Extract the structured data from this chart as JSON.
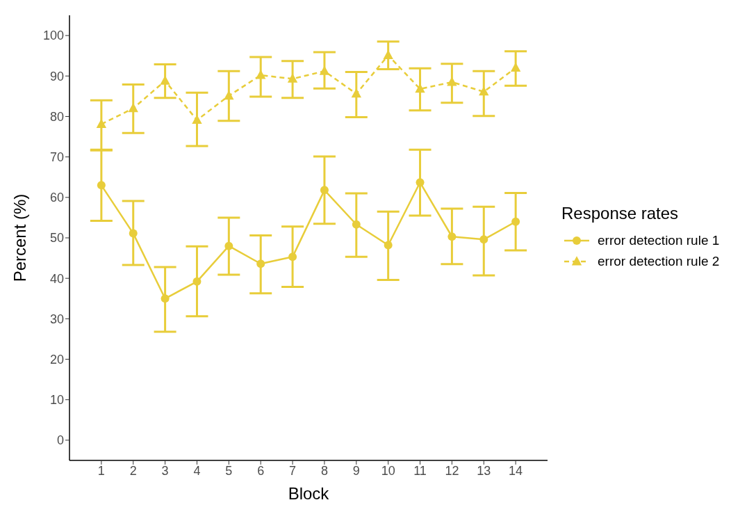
{
  "chart_data": {
    "type": "line",
    "xlabel": "Block",
    "ylabel": "Percent (%)",
    "legend_title": "Response rates",
    "legend": "right",
    "grid": false,
    "x": [
      1,
      2,
      3,
      4,
      5,
      6,
      7,
      8,
      9,
      10,
      11,
      12,
      13,
      14
    ],
    "xlim": [
      0,
      15
    ],
    "xticks": [
      1,
      2,
      3,
      4,
      5,
      6,
      7,
      8,
      9,
      10,
      11,
      12,
      13,
      14
    ],
    "ylim": [
      -5,
      105
    ],
    "yticks": [
      0,
      10,
      20,
      30,
      40,
      50,
      60,
      70,
      80,
      90,
      100
    ],
    "series": [
      {
        "name": "error detection rule 1",
        "color": "#e8cd3a",
        "marker": "circle",
        "line_style": "solid",
        "values": [
          63.0,
          51.1,
          35.0,
          39.2,
          48.0,
          43.6,
          45.3,
          61.8,
          53.3,
          48.2,
          63.7,
          50.3,
          49.6,
          54.0
        ],
        "errors": [
          [
            54.2,
            71.8
          ],
          [
            43.3,
            59.1
          ],
          [
            26.8,
            42.8
          ],
          [
            30.6,
            47.9
          ],
          [
            40.9,
            55.0
          ],
          [
            36.3,
            50.6
          ],
          [
            37.9,
            52.8
          ],
          [
            53.5,
            70.1
          ],
          [
            45.3,
            61.0
          ],
          [
            39.6,
            56.5
          ],
          [
            55.5,
            71.8
          ],
          [
            43.5,
            57.2
          ],
          [
            40.7,
            57.7
          ],
          [
            46.9,
            61.1
          ]
        ]
      },
      {
        "name": "error detection rule 2",
        "color": "#e8cd3a",
        "marker": "triangle",
        "line_style": "dashed",
        "values": [
          78.1,
          82.0,
          88.8,
          79.1,
          85.1,
          90.2,
          89.3,
          91.2,
          85.6,
          95.1,
          86.8,
          88.5,
          86.1,
          92.0
        ],
        "errors": [
          [
            71.6,
            84.0
          ],
          [
            75.9,
            87.9
          ],
          [
            84.6,
            92.9
          ],
          [
            72.7,
            85.9
          ],
          [
            78.9,
            91.2
          ],
          [
            84.9,
            94.7
          ],
          [
            84.6,
            93.7
          ],
          [
            86.9,
            95.9
          ],
          [
            79.8,
            91.0
          ],
          [
            91.7,
            98.5
          ],
          [
            81.5,
            91.9
          ],
          [
            83.4,
            93.0
          ],
          [
            80.1,
            91.2
          ],
          [
            87.6,
            96.1
          ]
        ]
      }
    ]
  }
}
